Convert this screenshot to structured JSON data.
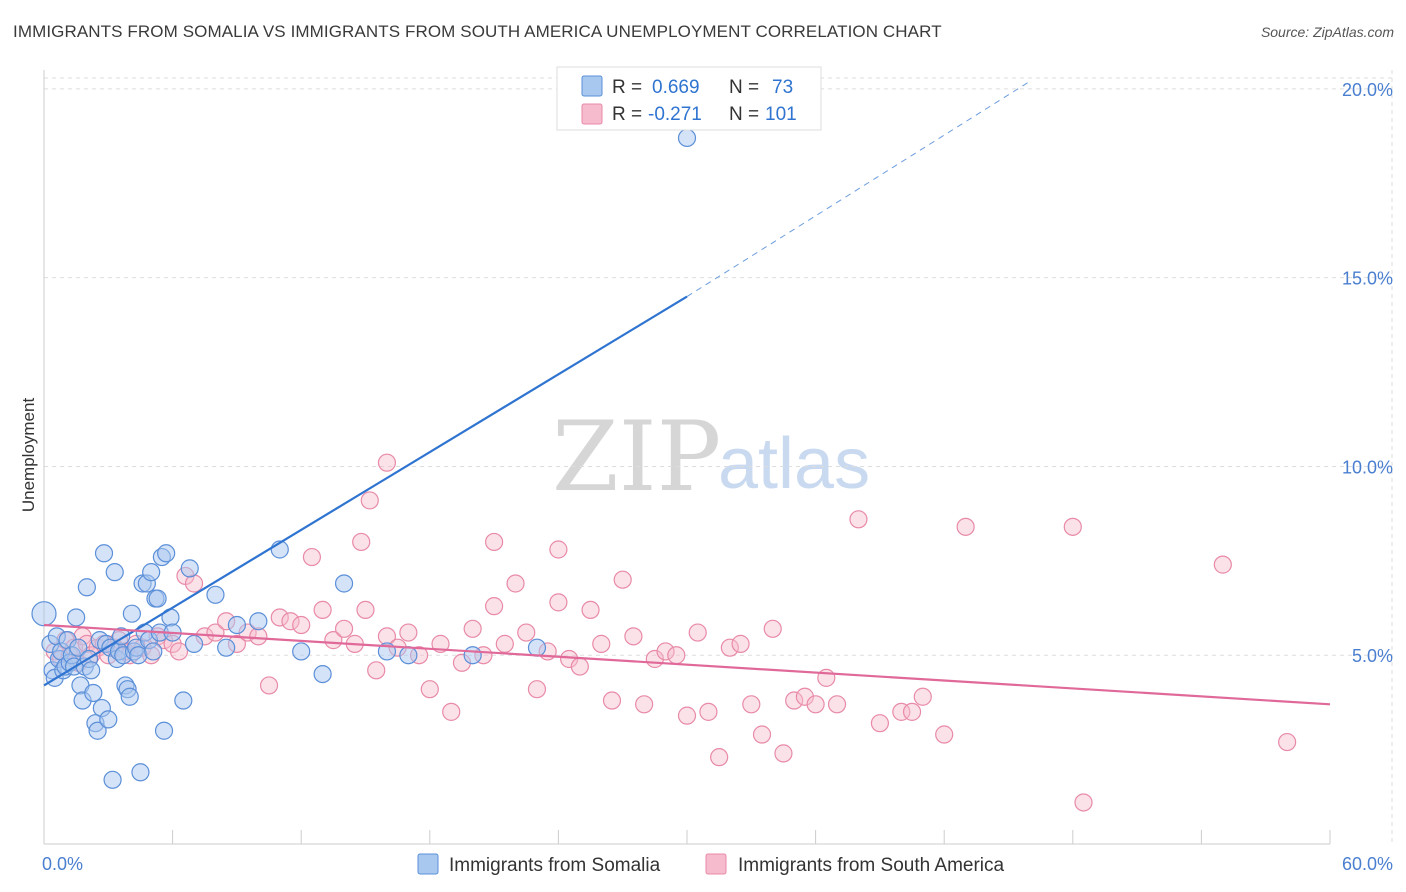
{
  "title": "IMMIGRANTS FROM SOMALIA VS IMMIGRANTS FROM SOUTH AMERICA UNEMPLOYMENT CORRELATION CHART",
  "source": "Source: ZipAtlas.com",
  "watermark": {
    "part1": "ZIP",
    "part2": "atlas"
  },
  "colors": {
    "somalia_fill": "#a9c8f0",
    "somalia_stroke": "#5b8fd8",
    "somalia_line": "#2f74d0",
    "sa_fill": "#f6bccd",
    "sa_stroke": "#e88aa8",
    "sa_line": "#e0699a",
    "tick_text": "#4a7fd0",
    "grid": "#dddddd"
  },
  "legend": {
    "rows": [
      {
        "r_label": "R =",
        "r_value": "0.669",
        "n_label": "N =",
        "n_value": "73"
      },
      {
        "r_label": "R =",
        "r_value": "-0.271",
        "n_label": "N =",
        "n_value": "101"
      }
    ]
  },
  "chart_data": {
    "type": "scatter",
    "title": "IMMIGRANTS FROM SOMALIA VS IMMIGRANTS FROM SOUTH AMERICA UNEMPLOYMENT CORRELATION CHART",
    "xlabel": "",
    "ylabel": "Unemployment",
    "xlim": [
      0,
      60
    ],
    "ylim": [
      0,
      20.5
    ],
    "x_tick_labels": [
      "0.0%",
      "60.0%"
    ],
    "y_ticks": [
      5,
      10,
      15,
      20
    ],
    "y_tick_labels": [
      "5.0%",
      "10.0%",
      "15.0%",
      "20.0%"
    ],
    "legend_position": "top-center",
    "series": [
      {
        "name": "Immigrants from Somalia",
        "r": 0.669,
        "n": 73,
        "trend": {
          "x_start": 0,
          "y_start": 4.2,
          "x_solid_end": 30,
          "y_solid_end": 14.5,
          "x_end": 46,
          "y_end": 20.2
        },
        "points": [
          [
            0.3,
            5.3
          ],
          [
            0.4,
            4.6
          ],
          [
            0.5,
            4.4
          ],
          [
            0.6,
            5.5
          ],
          [
            0.7,
            4.9
          ],
          [
            0.8,
            5.1
          ],
          [
            0.9,
            4.6
          ],
          [
            1.0,
            4.7
          ],
          [
            1.1,
            5.4
          ],
          [
            1.2,
            4.8
          ],
          [
            1.3,
            5.0
          ],
          [
            1.4,
            4.7
          ],
          [
            1.5,
            6.0
          ],
          [
            1.6,
            5.2
          ],
          [
            1.7,
            4.2
          ],
          [
            1.8,
            3.8
          ],
          [
            1.9,
            4.7
          ],
          [
            2.0,
            6.8
          ],
          [
            2.1,
            4.9
          ],
          [
            2.2,
            4.6
          ],
          [
            2.3,
            4.0
          ],
          [
            2.4,
            3.2
          ],
          [
            2.5,
            3.0
          ],
          [
            2.6,
            5.4
          ],
          [
            2.7,
            3.6
          ],
          [
            2.8,
            7.7
          ],
          [
            2.9,
            5.3
          ],
          [
            3.0,
            3.3
          ],
          [
            3.1,
            5.2
          ],
          [
            3.2,
            1.7
          ],
          [
            3.3,
            7.2
          ],
          [
            3.4,
            4.9
          ],
          [
            3.5,
            5.1
          ],
          [
            3.6,
            5.5
          ],
          [
            3.7,
            5.0
          ],
          [
            3.8,
            4.2
          ],
          [
            3.9,
            4.1
          ],
          [
            4.0,
            3.9
          ],
          [
            4.1,
            6.1
          ],
          [
            4.2,
            5.1
          ],
          [
            4.3,
            5.2
          ],
          [
            4.4,
            5.0
          ],
          [
            4.5,
            1.9
          ],
          [
            4.6,
            6.9
          ],
          [
            4.7,
            5.6
          ],
          [
            4.8,
            6.9
          ],
          [
            4.9,
            5.4
          ],
          [
            5.0,
            7.2
          ],
          [
            5.1,
            5.1
          ],
          [
            5.2,
            6.5
          ],
          [
            5.3,
            6.5
          ],
          [
            5.4,
            5.6
          ],
          [
            5.5,
            7.6
          ],
          [
            5.6,
            3.0
          ],
          [
            5.7,
            7.7
          ],
          [
            5.9,
            6.0
          ],
          [
            6.0,
            5.6
          ],
          [
            6.5,
            3.8
          ],
          [
            6.8,
            7.3
          ],
          [
            7.0,
            5.3
          ],
          [
            8.0,
            6.6
          ],
          [
            8.5,
            5.2
          ],
          [
            9.0,
            5.8
          ],
          [
            10.0,
            5.9
          ],
          [
            11.0,
            7.8
          ],
          [
            12.0,
            5.1
          ],
          [
            13.0,
            4.5
          ],
          [
            14.0,
            6.9
          ],
          [
            16.0,
            5.1
          ],
          [
            17.0,
            5.0
          ],
          [
            20.0,
            5.0
          ],
          [
            23.0,
            5.2
          ],
          [
            30.0,
            18.7
          ]
        ]
      },
      {
        "name": "Immigrants from South America",
        "r": -0.271,
        "n": 101,
        "trend": {
          "x_start": 0,
          "y_start": 5.8,
          "x_end": 60,
          "y_end": 3.7
        },
        "points": [
          [
            0.5,
            5.1
          ],
          [
            0.8,
            4.9
          ],
          [
            1.0,
            5.4
          ],
          [
            1.2,
            5.0
          ],
          [
            1.4,
            5.2
          ],
          [
            1.6,
            4.8
          ],
          [
            1.8,
            5.5
          ],
          [
            2.0,
            5.3
          ],
          [
            2.2,
            5.0
          ],
          [
            2.5,
            5.2
          ],
          [
            2.8,
            5.3
          ],
          [
            3.0,
            5.0
          ],
          [
            3.3,
            5.2
          ],
          [
            3.5,
            5.4
          ],
          [
            3.8,
            5.1
          ],
          [
            4.0,
            5.0
          ],
          [
            4.3,
            5.3
          ],
          [
            4.6,
            5.2
          ],
          [
            5.0,
            5.0
          ],
          [
            5.3,
            5.5
          ],
          [
            5.6,
            5.4
          ],
          [
            6.0,
            5.3
          ],
          [
            6.3,
            5.1
          ],
          [
            6.6,
            7.1
          ],
          [
            7.0,
            6.9
          ],
          [
            7.5,
            5.5
          ],
          [
            8.0,
            5.6
          ],
          [
            8.5,
            5.9
          ],
          [
            9.0,
            5.3
          ],
          [
            9.5,
            5.6
          ],
          [
            10.0,
            5.5
          ],
          [
            10.5,
            4.2
          ],
          [
            11.0,
            6.0
          ],
          [
            11.5,
            5.9
          ],
          [
            12.0,
            5.8
          ],
          [
            12.5,
            7.6
          ],
          [
            13.0,
            6.2
          ],
          [
            13.5,
            5.4
          ],
          [
            14.0,
            5.7
          ],
          [
            14.5,
            5.3
          ],
          [
            15.0,
            6.2
          ],
          [
            15.5,
            4.6
          ],
          [
            16.0,
            5.5
          ],
          [
            16.5,
            5.2
          ],
          [
            17.0,
            5.6
          ],
          [
            17.5,
            5.0
          ],
          [
            18.0,
            4.1
          ],
          [
            18.5,
            5.3
          ],
          [
            19.0,
            3.5
          ],
          [
            19.5,
            4.8
          ],
          [
            20.0,
            5.7
          ],
          [
            20.5,
            5.0
          ],
          [
            21.0,
            6.3
          ],
          [
            21.5,
            5.3
          ],
          [
            22.0,
            6.9
          ],
          [
            22.5,
            5.6
          ],
          [
            23.0,
            4.1
          ],
          [
            23.5,
            5.1
          ],
          [
            24.0,
            6.4
          ],
          [
            24.5,
            4.9
          ],
          [
            25.0,
            4.7
          ],
          [
            25.5,
            6.2
          ],
          [
            26.0,
            5.3
          ],
          [
            26.5,
            3.8
          ],
          [
            27.0,
            7.0
          ],
          [
            27.5,
            5.5
          ],
          [
            28.0,
            3.7
          ],
          [
            28.5,
            4.9
          ],
          [
            29.0,
            5.1
          ],
          [
            29.5,
            5.0
          ],
          [
            30.0,
            3.4
          ],
          [
            30.5,
            5.6
          ],
          [
            31.0,
            3.5
          ],
          [
            31.5,
            2.3
          ],
          [
            32.0,
            5.2
          ],
          [
            32.5,
            5.3
          ],
          [
            33.0,
            3.7
          ],
          [
            33.5,
            2.9
          ],
          [
            34.0,
            5.7
          ],
          [
            34.5,
            2.4
          ],
          [
            35.0,
            3.8
          ],
          [
            35.5,
            3.9
          ],
          [
            36.0,
            3.7
          ],
          [
            36.5,
            4.4
          ],
          [
            37.0,
            3.7
          ],
          [
            38.0,
            8.6
          ],
          [
            39.0,
            3.2
          ],
          [
            40.0,
            3.5
          ],
          [
            40.5,
            3.5
          ],
          [
            41.0,
            3.9
          ],
          [
            42.0,
            2.9
          ],
          [
            43.0,
            8.4
          ],
          [
            14.8,
            8.0
          ],
          [
            15.2,
            9.1
          ],
          [
            16.0,
            10.1
          ],
          [
            21.0,
            8.0
          ],
          [
            24.0,
            7.8
          ],
          [
            48.0,
            8.4
          ],
          [
            55.0,
            7.4
          ],
          [
            58.0,
            2.7
          ],
          [
            48.5,
            1.1
          ]
        ]
      }
    ]
  },
  "bottom_legend": [
    {
      "label": "Immigrants from Somalia"
    },
    {
      "label": "Immigrants from South America"
    }
  ]
}
